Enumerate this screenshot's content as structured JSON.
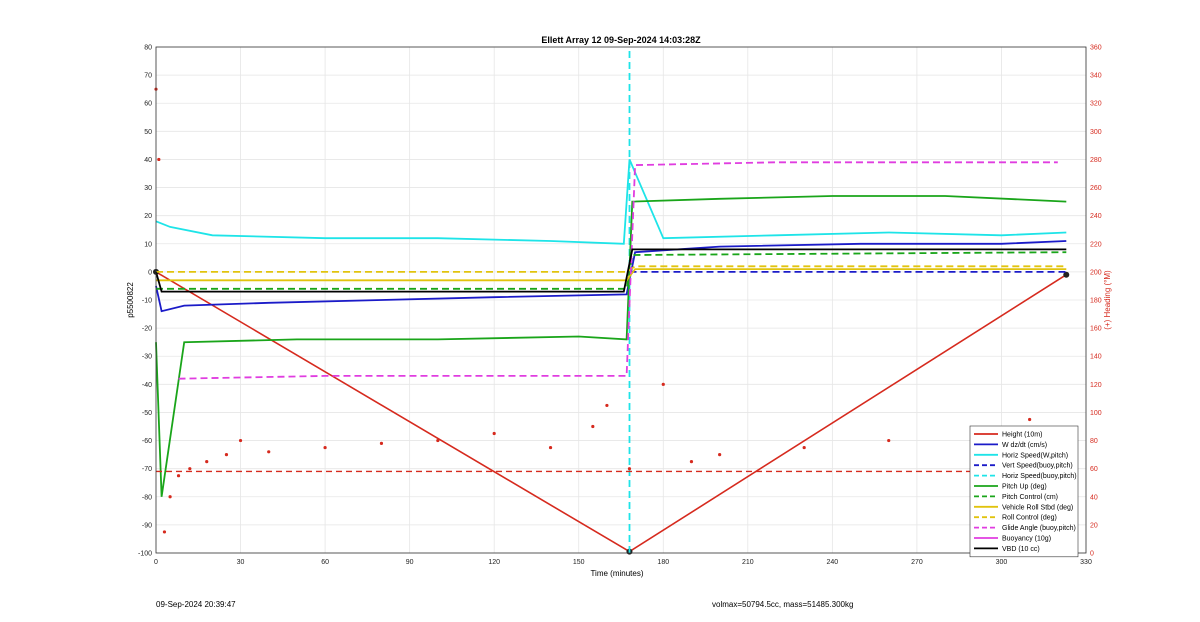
{
  "chart_data": {
    "type": "line",
    "title": "Ellett Array 12 09-Sep-2024 14:03:28Z",
    "xlabel": "Time (minutes)",
    "ylabel": "p5500822",
    "y2label": "(+) Heading (°M)",
    "xlim": [
      0,
      330
    ],
    "ylim": [
      -100,
      80
    ],
    "y2lim": [
      0,
      360
    ],
    "xticks": [
      "0",
      "30",
      "60",
      "90",
      "120",
      "150",
      "180",
      "210",
      "240",
      "270",
      "300",
      "330"
    ],
    "yticks": [
      "-100",
      "-90",
      "-80",
      "-70",
      "-60",
      "-50",
      "-40",
      "-30",
      "-20",
      "-10",
      "0",
      "10",
      "20",
      "30",
      "40",
      "50",
      "60",
      "70",
      "80"
    ],
    "y2ticks": [
      "0",
      "20",
      "40",
      "60",
      "80",
      "100",
      "120",
      "140",
      "160",
      "180",
      "200",
      "220",
      "240",
      "260",
      "280",
      "300",
      "320",
      "340",
      "360"
    ],
    "grid": true,
    "legend_position": "lower-right",
    "colors": {
      "axis_right": "#d62a1e"
    },
    "series": [
      {
        "name": "Height (10m)",
        "color": "#d62a1e",
        "style": "solid",
        "x": [
          0,
          168,
          323
        ],
        "y": [
          0,
          -99.5,
          -1
        ]
      },
      {
        "name": "W dz/dt (cm/s)",
        "color": "#1b1bc8",
        "style": "solid",
        "x": [
          0,
          2,
          10,
          40,
          80,
          120,
          167,
          170,
          200,
          250,
          300,
          323
        ],
        "y": [
          -5,
          -14,
          -12,
          -11,
          -10,
          -9,
          -8,
          7,
          9,
          10,
          10,
          11
        ]
      },
      {
        "name": "Horiz Speed(W,pitch)",
        "color": "#1ee4e8",
        "style": "solid",
        "x": [
          0,
          5,
          20,
          60,
          100,
          140,
          166,
          168,
          180,
          220,
          260,
          300,
          323
        ],
        "y": [
          18,
          16,
          13,
          12,
          12,
          11,
          10,
          40,
          12,
          13,
          14,
          13,
          14
        ]
      },
      {
        "name": "Vert Speed(buoy,pitch)",
        "color": "#1b1bc8",
        "style": "dashed",
        "x": [
          168,
          323
        ],
        "y": [
          0,
          0
        ]
      },
      {
        "name": "Horiz Speed(buoy,pitch)",
        "color": "#1ee4e8",
        "style": "dashed",
        "x": [
          168,
          168
        ],
        "y": [
          -100,
          80
        ]
      },
      {
        "name": "Pitch Up (deg)",
        "color": "#1aa51a",
        "style": "solid",
        "x": [
          0,
          2,
          10,
          50,
          100,
          150,
          167,
          169,
          200,
          240,
          280,
          323
        ],
        "y": [
          -25,
          -80,
          -25,
          -24,
          -24,
          -23,
          -24,
          25,
          26,
          27,
          27,
          25
        ]
      },
      {
        "name": "Pitch Control (cm)",
        "color": "#1aa51a",
        "style": "dashed",
        "x": [
          0,
          167,
          169,
          323
        ],
        "y": [
          -6,
          -6,
          6,
          7
        ]
      },
      {
        "name": "Vehicle Roll Stbd (deg)",
        "color": "#e1c30e",
        "style": "solid",
        "x": [
          0,
          30,
          60,
          90,
          120,
          150,
          167,
          170,
          200,
          240,
          280,
          323
        ],
        "y": [
          -3,
          -3,
          -3,
          -3,
          -3,
          -3,
          -3,
          1,
          1,
          1,
          1,
          1
        ]
      },
      {
        "name": "Roll Control (deg)",
        "color": "#e1c30e",
        "style": "dashed",
        "x": [
          0,
          167,
          170,
          323
        ],
        "y": [
          0,
          0,
          2,
          2
        ]
      },
      {
        "name": "Glide Angle (buoy,pitch)",
        "color": "#e03de0",
        "style": "dashed",
        "x": [
          8,
          60,
          120,
          167,
          170,
          220,
          270,
          320
        ],
        "y": [
          -38,
          -37,
          -37,
          -37,
          38,
          39,
          39,
          39
        ]
      },
      {
        "name": "Buoyancy (10g)",
        "color": "#e03de0",
        "style": "solid",
        "x": [],
        "y": []
      },
      {
        "name": "VBD (10 cc)",
        "color": "#000000",
        "style": "solid",
        "x": [
          0,
          2,
          60,
          120,
          166,
          169,
          240,
          323
        ],
        "y": [
          0,
          -7,
          -7,
          -7,
          -7,
          8,
          8,
          8
        ]
      }
    ],
    "heading_data": {
      "axis": "right",
      "color": "#d62a1e",
      "reference_value": 58,
      "x": [
        0,
        1,
        3,
        5,
        8,
        12,
        18,
        25,
        30,
        40,
        60,
        80,
        100,
        120,
        140,
        155,
        160,
        168,
        180,
        190,
        200,
        230,
        260,
        290,
        310,
        323
      ],
      "y": [
        330,
        280,
        15,
        40,
        55,
        60,
        65,
        70,
        80,
        72,
        75,
        78,
        80,
        85,
        75,
        90,
        105,
        60,
        120,
        65,
        70,
        75,
        80,
        78,
        95,
        75
      ]
    }
  },
  "footer": {
    "timestamp": "09-Sep-2024 20:39:47",
    "mass_info": "volmax=50794.5cc, mass=51485.300kg"
  }
}
